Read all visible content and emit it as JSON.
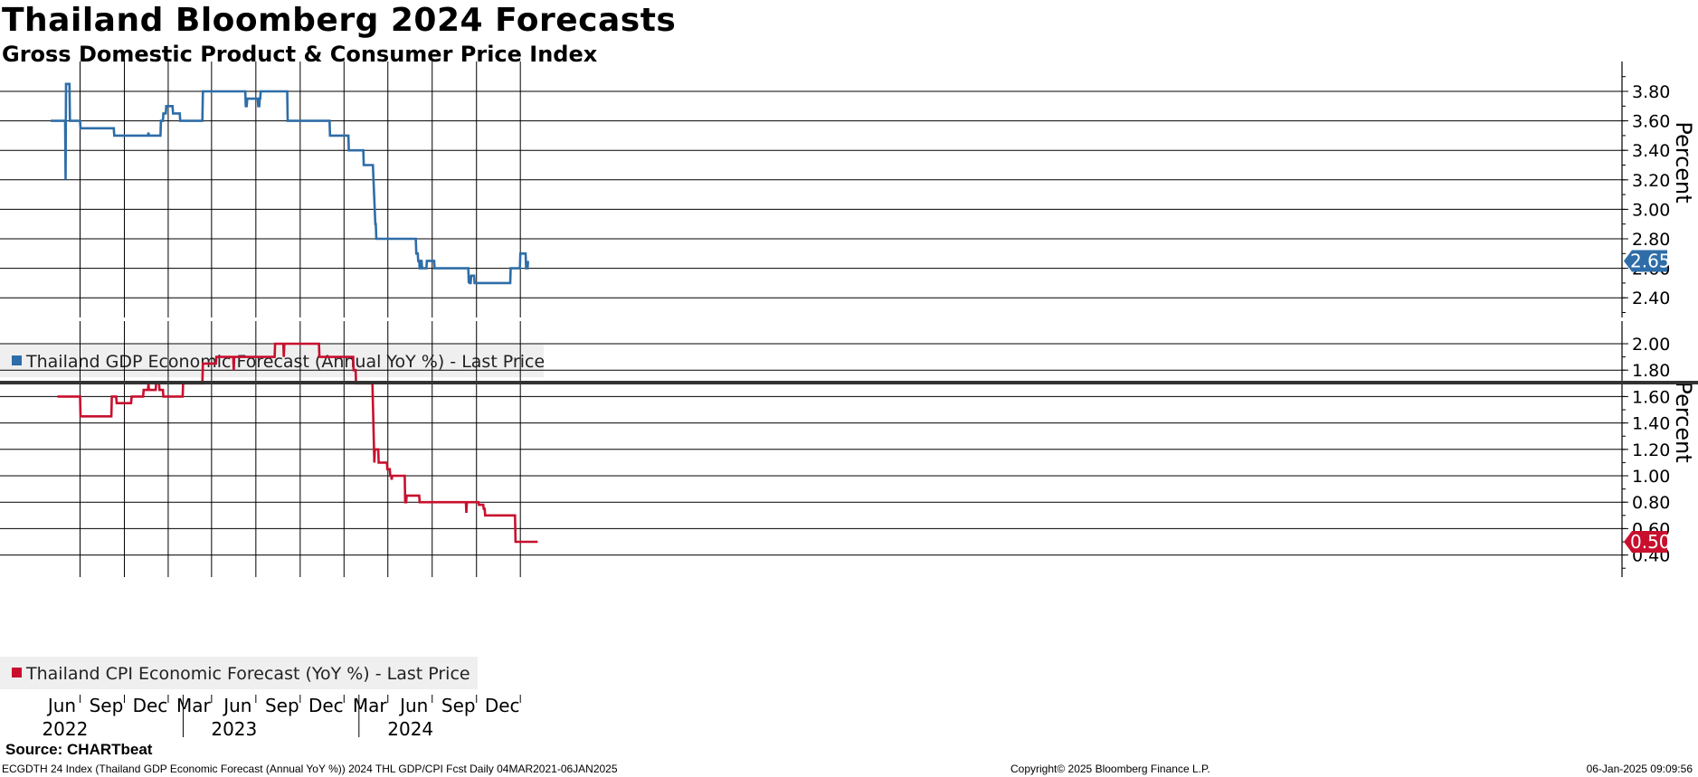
{
  "header": {
    "title": "Thailand Bloomberg 2024 Forecasts",
    "subtitle": "Gross Domestic Product & Consumer Price Index"
  },
  "footer": {
    "source": "Source: CHARTbeat",
    "info": "ECGDTH 24 Index (Thailand GDP Economic Forecast (Annual YoY %)) 2024 THL GDP/CPI Fcst  Daily 04MAR2021-06JAN2025",
    "copyright": "Copyright© 2025 Bloomberg Finance L.P.",
    "date": "06-Jan-2025 09:09:56"
  },
  "colors": {
    "gdp": "#2e6da8",
    "cpi": "#c8102e",
    "grid": "#000000"
  },
  "chart_data": [
    {
      "type": "line",
      "name": "Thailand GDP Economic Forecast (Annual YoY %) - Last Price",
      "legend": "Thailand GDP Economic Forecast (Annual YoY %) - Last Price",
      "ylabel": "Percent",
      "ylim": [
        2.3,
        4.0
      ],
      "yticks": [
        2.4,
        2.6,
        2.8,
        3.0,
        3.2,
        3.4,
        3.6,
        3.8
      ],
      "ytick_labels": [
        "2.40",
        "2.60",
        "2.80",
        "3.00",
        "3.20",
        "3.40",
        "3.60",
        "3.80"
      ],
      "last_value": 2.65,
      "last_label": "2.65",
      "color": "#2e6da8",
      "points": [
        [
          "2022-04-01",
          3.6
        ],
        [
          "2022-05-01",
          3.6
        ],
        [
          "2022-05-02",
          3.2
        ],
        [
          "2022-05-03",
          3.85
        ],
        [
          "2022-05-10",
          3.85
        ],
        [
          "2022-05-11",
          3.6
        ],
        [
          "2022-06-01",
          3.6
        ],
        [
          "2022-06-02",
          3.55
        ],
        [
          "2022-08-10",
          3.55
        ],
        [
          "2022-08-11",
          3.5
        ],
        [
          "2022-10-20",
          3.5
        ],
        [
          "2022-10-21",
          3.52
        ],
        [
          "2022-10-22",
          3.5
        ],
        [
          "2022-11-15",
          3.5
        ],
        [
          "2022-11-16",
          3.6
        ],
        [
          "2022-11-20",
          3.6
        ],
        [
          "2022-11-21",
          3.65
        ],
        [
          "2022-11-26",
          3.65
        ],
        [
          "2022-11-27",
          3.7
        ],
        [
          "2022-12-10",
          3.7
        ],
        [
          "2022-12-11",
          3.65
        ],
        [
          "2022-12-25",
          3.65
        ],
        [
          "2022-12-26",
          3.6
        ],
        [
          "2023-02-10",
          3.6
        ],
        [
          "2023-02-11",
          3.8
        ],
        [
          "2023-05-10",
          3.8
        ],
        [
          "2023-05-11",
          3.7
        ],
        [
          "2023-05-13",
          3.7
        ],
        [
          "2023-05-14",
          3.75
        ],
        [
          "2023-06-05",
          3.75
        ],
        [
          "2023-06-06",
          3.7
        ],
        [
          "2023-06-08",
          3.7
        ],
        [
          "2023-06-09",
          3.75
        ],
        [
          "2023-06-10",
          3.75
        ],
        [
          "2023-06-11",
          3.8
        ],
        [
          "2023-08-05",
          3.8
        ],
        [
          "2023-08-06",
          3.6
        ],
        [
          "2023-11-01",
          3.6
        ],
        [
          "2023-11-02",
          3.5
        ],
        [
          "2023-12-10",
          3.5
        ],
        [
          "2023-12-11",
          3.4
        ],
        [
          "2024-01-10",
          3.4
        ],
        [
          "2024-01-11",
          3.3
        ],
        [
          "2024-01-30",
          3.3
        ],
        [
          "2024-02-04",
          2.9
        ],
        [
          "2024-02-05",
          2.9
        ],
        [
          "2024-02-06",
          2.8
        ],
        [
          "2024-04-28",
          2.8
        ],
        [
          "2024-04-29",
          2.7
        ],
        [
          "2024-05-02",
          2.7
        ],
        [
          "2024-05-03",
          2.65
        ],
        [
          "2024-05-05",
          2.65
        ],
        [
          "2024-05-06",
          2.6
        ],
        [
          "2024-05-08",
          2.6
        ],
        [
          "2024-05-09",
          2.65
        ],
        [
          "2024-05-10",
          2.65
        ],
        [
          "2024-05-11",
          2.6
        ],
        [
          "2024-05-20",
          2.6
        ],
        [
          "2024-05-21",
          2.65
        ],
        [
          "2024-06-05",
          2.65
        ],
        [
          "2024-06-06",
          2.6
        ],
        [
          "2024-08-15",
          2.6
        ],
        [
          "2024-08-16",
          2.5
        ],
        [
          "2024-08-17",
          2.55
        ],
        [
          "2024-08-18",
          2.5
        ],
        [
          "2024-08-20",
          2.5
        ],
        [
          "2024-08-21",
          2.55
        ],
        [
          "2024-08-27",
          2.55
        ],
        [
          "2024-08-28",
          2.5
        ],
        [
          "2024-11-10",
          2.5
        ],
        [
          "2024-11-11",
          2.6
        ],
        [
          "2024-11-30",
          2.6
        ],
        [
          "2024-12-01",
          2.7
        ],
        [
          "2024-12-12",
          2.7
        ],
        [
          "2024-12-13",
          2.6
        ],
        [
          "2024-12-16",
          2.6
        ],
        [
          "2024-12-17",
          2.65
        ]
      ]
    },
    {
      "type": "line",
      "name": "Thailand CPI Economic Forecast (YoY %) - Last Price",
      "legend": "Thailand CPI Economic Forecast (YoY %) - Last Price",
      "ylabel": "Percent",
      "ylim": [
        0.3,
        2.1
      ],
      "yticks": [
        0.4,
        0.6,
        0.8,
        1.0,
        1.2,
        1.4,
        1.6,
        1.8,
        2.0
      ],
      "ytick_labels": [
        "0.40",
        "0.60",
        "0.80",
        "1.00",
        "1.20",
        "1.40",
        "1.60",
        "1.80",
        "2.00"
      ],
      "last_value": 0.5,
      "last_label": "0.50",
      "color": "#c8102e",
      "points": [
        [
          "2022-04-15",
          1.6
        ],
        [
          "2022-06-01",
          1.6
        ],
        [
          "2022-06-02",
          1.45
        ],
        [
          "2022-08-05",
          1.45
        ],
        [
          "2022-08-06",
          1.6
        ],
        [
          "2022-08-15",
          1.6
        ],
        [
          "2022-08-16",
          1.55
        ],
        [
          "2022-09-15",
          1.55
        ],
        [
          "2022-09-16",
          1.6
        ],
        [
          "2022-10-10",
          1.6
        ],
        [
          "2022-10-11",
          1.65
        ],
        [
          "2022-10-20",
          1.65
        ],
        [
          "2022-10-21",
          1.7
        ],
        [
          "2022-10-22",
          1.65
        ],
        [
          "2022-11-05",
          1.65
        ],
        [
          "2022-11-06",
          1.7
        ],
        [
          "2022-11-12",
          1.7
        ],
        [
          "2022-11-13",
          1.65
        ],
        [
          "2022-11-20",
          1.65
        ],
        [
          "2022-11-21",
          1.6
        ],
        [
          "2022-12-31",
          1.6
        ],
        [
          "2023-01-01",
          1.7
        ],
        [
          "2023-02-10",
          1.7
        ],
        [
          "2023-02-11",
          1.85
        ],
        [
          "2023-03-10",
          1.85
        ],
        [
          "2023-03-11",
          1.9
        ],
        [
          "2023-04-15",
          1.9
        ],
        [
          "2023-04-16",
          1.8
        ],
        [
          "2023-04-17",
          1.9
        ],
        [
          "2023-07-10",
          1.9
        ],
        [
          "2023-07-11",
          2.0
        ],
        [
          "2023-07-28",
          2.0
        ],
        [
          "2023-07-29",
          1.9
        ],
        [
          "2023-07-30",
          2.0
        ],
        [
          "2023-10-10",
          2.0
        ],
        [
          "2023-10-11",
          1.9
        ],
        [
          "2023-12-20",
          1.9
        ],
        [
          "2023-12-21",
          1.8
        ],
        [
          "2023-12-25",
          1.8
        ],
        [
          "2023-12-26",
          1.7
        ],
        [
          "2024-01-29",
          1.7
        ],
        [
          "2024-02-02",
          1.1
        ],
        [
          "2024-02-03",
          1.2
        ],
        [
          "2024-02-10",
          1.2
        ],
        [
          "2024-02-11",
          1.1
        ],
        [
          "2024-02-28",
          1.1
        ],
        [
          "2024-02-29",
          1.05
        ],
        [
          "2024-03-05",
          1.05
        ],
        [
          "2024-03-06",
          1.0
        ],
        [
          "2024-03-08",
          1.0
        ],
        [
          "2024-03-09",
          0.97
        ],
        [
          "2024-03-10",
          1.0
        ],
        [
          "2024-04-05",
          1.0
        ],
        [
          "2024-04-06",
          0.8
        ],
        [
          "2024-04-08",
          0.8
        ],
        [
          "2024-04-09",
          0.85
        ],
        [
          "2024-05-05",
          0.85
        ],
        [
          "2024-05-06",
          0.8
        ],
        [
          "2024-08-10",
          0.8
        ],
        [
          "2024-08-11",
          0.72
        ],
        [
          "2024-08-12",
          0.8
        ],
        [
          "2024-09-05",
          0.8
        ],
        [
          "2024-09-06",
          0.78
        ],
        [
          "2024-09-15",
          0.78
        ],
        [
          "2024-09-16",
          0.75
        ],
        [
          "2024-09-18",
          0.75
        ],
        [
          "2024-09-19",
          0.7
        ],
        [
          "2024-11-20",
          0.7
        ],
        [
          "2024-11-21",
          0.5
        ],
        [
          "2025-01-06",
          0.5
        ]
      ]
    }
  ],
  "x_axis": {
    "months": [
      {
        "label": "Jun",
        "date": "2022-06-01"
      },
      {
        "label": "Sep",
        "date": "2022-09-01"
      },
      {
        "label": "Dec",
        "date": "2022-12-01"
      },
      {
        "label": "Mar",
        "date": "2023-03-01"
      },
      {
        "label": "Jun",
        "date": "2023-06-01"
      },
      {
        "label": "Sep",
        "date": "2023-09-01"
      },
      {
        "label": "Dec",
        "date": "2023-12-01"
      },
      {
        "label": "Mar",
        "date": "2024-03-01"
      },
      {
        "label": "Jun",
        "date": "2024-06-01"
      },
      {
        "label": "Sep",
        "date": "2024-09-01"
      },
      {
        "label": "Dec",
        "date": "2024-12-01"
      }
    ],
    "years": [
      {
        "label": "2022",
        "date": "2022-07-15"
      },
      {
        "label": "2023",
        "date": "2023-07-01"
      },
      {
        "label": "2024",
        "date": "2024-07-01"
      }
    ],
    "year_breaks": [
      "2023-01-01",
      "2024-01-01"
    ]
  }
}
